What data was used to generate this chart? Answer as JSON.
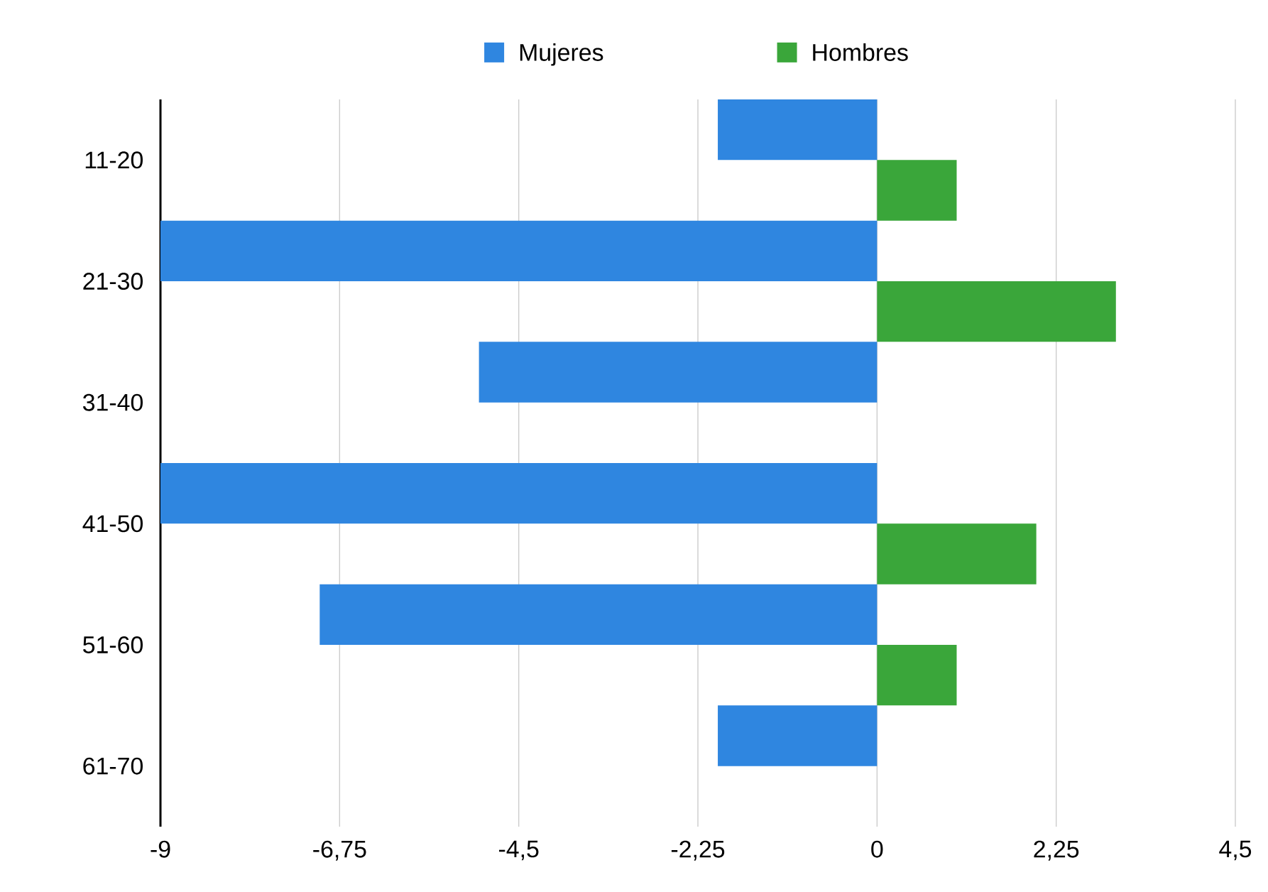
{
  "chart_data": {
    "type": "bar",
    "orientation": "horizontal",
    "categories": [
      "11-20",
      "21-30",
      "31-40",
      "41-50",
      "51-60",
      "61-70"
    ],
    "series": [
      {
        "name": "Mujeres",
        "color": "#2f86e0",
        "values": [
          -2,
          -9,
          -5,
          -9,
          -7,
          -2
        ]
      },
      {
        "name": "Hombres",
        "color": "#3aa63a",
        "values": [
          1,
          3,
          null,
          2,
          1,
          null
        ]
      }
    ],
    "xlim": [
      -9,
      4.5
    ],
    "xticks": [
      -9,
      {
        "value": -6.75,
        "label": "-6,75"
      },
      {
        "value": -4.5,
        "label": "-4,5"
      },
      {
        "value": -2.25,
        "label": "-2,25"
      },
      0,
      {
        "value": 2.25,
        "label": "2,25"
      },
      {
        "value": 4.5,
        "label": "4,5"
      }
    ],
    "grid": "x",
    "legend": "top"
  }
}
